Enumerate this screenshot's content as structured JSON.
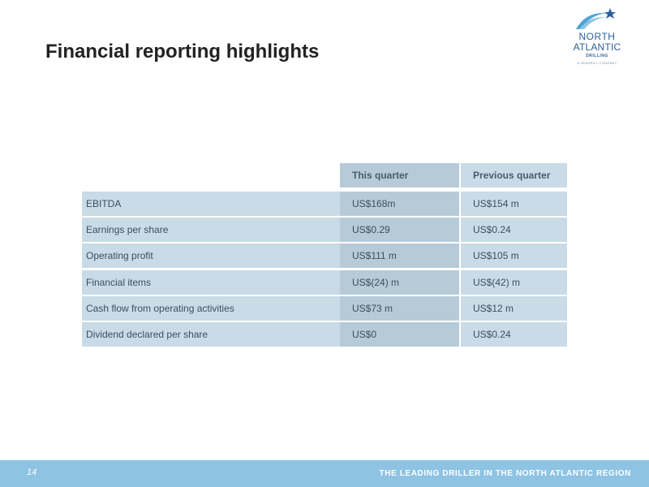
{
  "slide": {
    "title": "Financial reporting highlights",
    "page_number": "14",
    "tagline": "THE LEADING DRILLER IN THE NORTH ATLANTIC REGION"
  },
  "logo": {
    "line1": "NORTH",
    "line2": "ATLANTIC",
    "line3": "DRILLING",
    "line4": "A SEADRILL COMPANY",
    "colors": {
      "primary": "#2a5f9e",
      "accent": "#4da3d9"
    }
  },
  "table": {
    "headers": {
      "label": "",
      "this_quarter": "This quarter",
      "previous_quarter": "Previous quarter"
    },
    "rows": [
      {
        "label": "EBITDA",
        "this_quarter": "US$168m",
        "previous_quarter": "US$154 m"
      },
      {
        "label": "Earnings per share",
        "this_quarter": "US$0.29",
        "previous_quarter": "US$0.24"
      },
      {
        "label": "Operating profit",
        "this_quarter": "US$111 m",
        "previous_quarter": "US$105 m"
      },
      {
        "label": "Financial items",
        "this_quarter": "US$(24) m",
        "previous_quarter": "US$(42) m"
      },
      {
        "label": "Cash flow from operating activities",
        "this_quarter": "US$73 m",
        "previous_quarter": "US$12 m"
      },
      {
        "label": "Dividend declared per share",
        "this_quarter": "US$0",
        "previous_quarter": "US$0.24"
      }
    ]
  },
  "colors": {
    "footer": "#8ec3e4",
    "cell_light": "#c9dbe6",
    "cell_dark": "#b6cbd7",
    "title_text": "#222222"
  }
}
